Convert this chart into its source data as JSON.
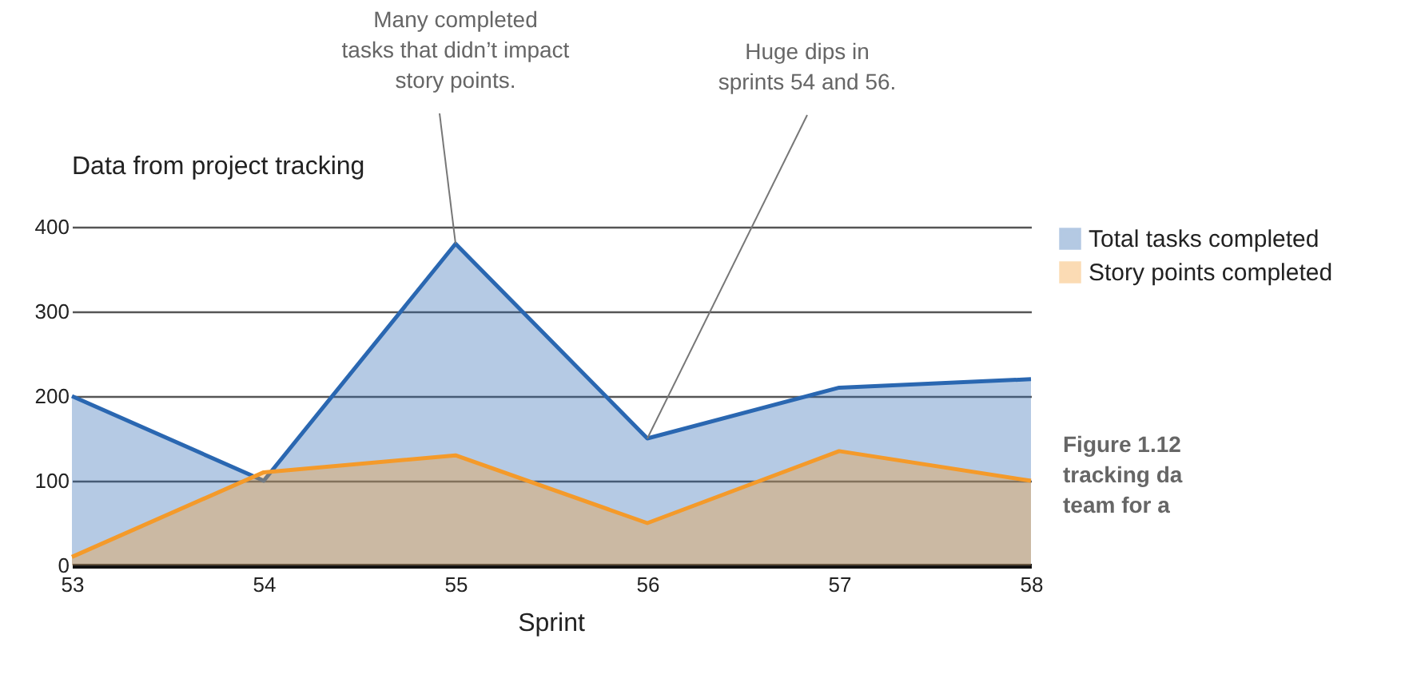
{
  "chart_data": {
    "type": "area",
    "title": "Data from project tracking",
    "xlabel": "Sprint",
    "x": [
      53,
      54,
      55,
      56,
      57,
      58
    ],
    "series": [
      {
        "name": "Total tasks completed",
        "color": "#2a67b1",
        "values": [
          200,
          100,
          380,
          150,
          210,
          220
        ]
      },
      {
        "name": "Story points completed",
        "color": "#f49a2a",
        "values": [
          10,
          110,
          130,
          50,
          135,
          100
        ]
      }
    ],
    "xlim": [
      53,
      58
    ],
    "xticks": [
      53,
      54,
      55,
      56,
      57,
      58
    ],
    "ylim": [
      0,
      400
    ],
    "yticks": [
      0,
      100,
      200,
      300,
      400
    ],
    "grid": "y",
    "legend": "top right",
    "annotations": [
      {
        "text": "Many completed\ntasks that didn’t impact\nstory points.",
        "x": 55,
        "y": 380
      },
      {
        "text": "Huge dips in\nsprints 54 and 56.",
        "x": 56,
        "y": 150
      },
      "Figure 1.12\ntracking da\nteam for a"
    ]
  }
}
